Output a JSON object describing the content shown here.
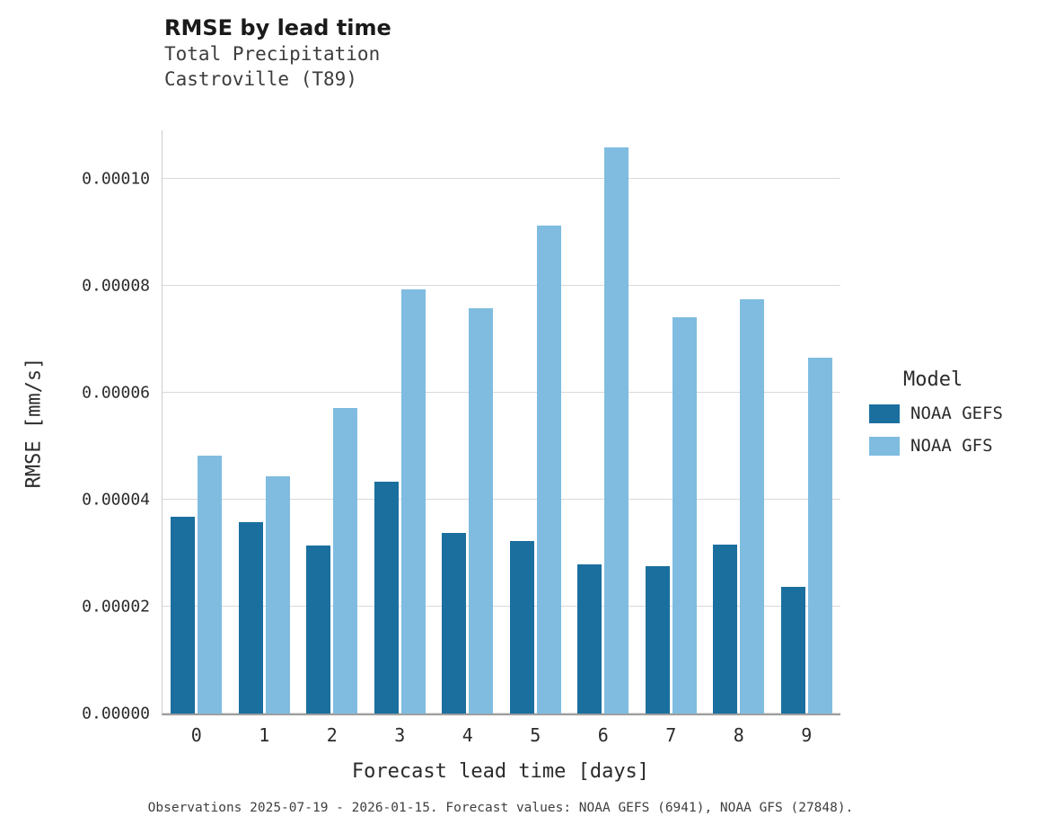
{
  "header": {
    "title": "RMSE by lead time",
    "subtitle_line1": "Total Precipitation",
    "subtitle_line2": "Castroville (T89)"
  },
  "axes": {
    "ylabel": "RMSE [mm/s]",
    "xlabel": "Forecast lead time [days]"
  },
  "legend": {
    "title": "Model",
    "entries": [
      {
        "label": "NOAA GEFS",
        "color": "#1a6f9e"
      },
      {
        "label": "NOAA GFS",
        "color": "#7fbce0"
      }
    ]
  },
  "caption": "Observations 2025-07-19 - 2026-01-15. Forecast values: NOAA GEFS (6941), NOAA GFS (27848).",
  "colors": {
    "gefs_dark_blue": "#1a6f9e",
    "gfs_light_blue": "#7fbce0",
    "gridline": "#d9d9d9"
  },
  "chart_data": {
    "type": "bar",
    "title": "RMSE by lead time",
    "subtitle": "Total Precipitation / Castroville (T89)",
    "xlabel": "Forecast lead time [days]",
    "ylabel": "RMSE [mm/s]",
    "categories": [
      "0",
      "1",
      "2",
      "3",
      "4",
      "5",
      "6",
      "7",
      "8",
      "9"
    ],
    "series": [
      {
        "name": "NOAA GEFS",
        "color": "#1a6f9e",
        "values": [
          3.68e-05,
          3.58e-05,
          3.14e-05,
          4.34e-05,
          3.37e-05,
          3.22e-05,
          2.78e-05,
          2.75e-05,
          3.16e-05,
          2.36e-05
        ]
      },
      {
        "name": "NOAA GFS",
        "color": "#7fbce0",
        "values": [
          4.82e-05,
          4.43e-05,
          5.71e-05,
          7.92e-05,
          7.58e-05,
          9.12e-05,
          0.0001058,
          7.4e-05,
          7.74e-05,
          6.65e-05
        ]
      }
    ],
    "ylim": [
      0,
      0.000109
    ],
    "yticks": [
      0,
      2e-05,
      4e-05,
      6e-05,
      8e-05,
      0.0001
    ],
    "ytick_labels": [
      "0.00000",
      "0.00002",
      "0.00004",
      "0.00006",
      "0.00008",
      "0.00010"
    ],
    "grid": true,
    "legend_title": "Model",
    "legend_position": "right"
  }
}
